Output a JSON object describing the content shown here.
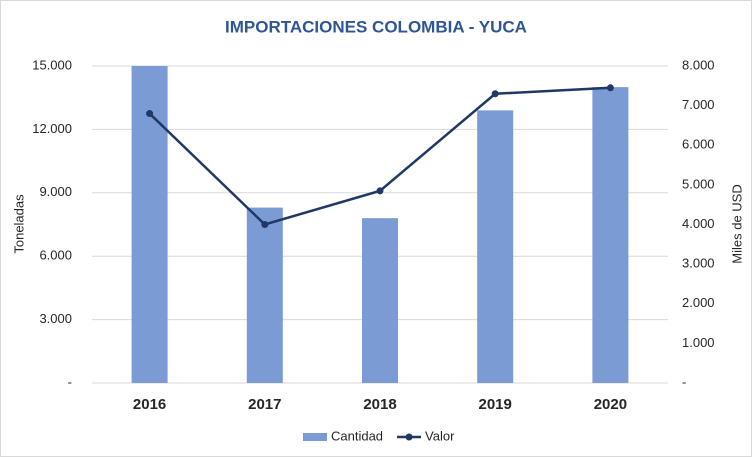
{
  "chart_data": {
    "type": "bar_line",
    "title": "IMPORTACIONES COLOMBIA - YUCA",
    "y_label": "Toneladas",
    "y2_label": "Miles de USD",
    "categories": [
      "2016",
      "2017",
      "2018",
      "2019",
      "2020"
    ],
    "series": [
      {
        "name": "Cantidad",
        "type": "bar",
        "color": "#7b9bd5",
        "values": [
          15000,
          8300,
          7800,
          12900,
          14000
        ]
      },
      {
        "name": "Valor",
        "type": "line",
        "axis": "y2",
        "color": "#1f3864",
        "values": [
          6800,
          4000,
          4850,
          7300,
          7450
        ]
      }
    ],
    "ylim": [
      0,
      15000
    ],
    "yticks": [
      {
        "value": 0,
        "label": "-"
      },
      {
        "value": 3000,
        "label": "3.000"
      },
      {
        "value": 6000,
        "label": "6.000"
      },
      {
        "value": 9000,
        "label": "9.000"
      },
      {
        "value": 12000,
        "label": "12.000"
      },
      {
        "value": 15000,
        "label": "15.000"
      }
    ],
    "y2lim": [
      0,
      8000
    ],
    "y2ticks": [
      {
        "value": 0,
        "label": "-"
      },
      {
        "value": 1000,
        "label": "1.000"
      },
      {
        "value": 2000,
        "label": "2.000"
      },
      {
        "value": 3000,
        "label": "3.000"
      },
      {
        "value": 4000,
        "label": "4.000"
      },
      {
        "value": 5000,
        "label": "5.000"
      },
      {
        "value": 6000,
        "label": "6.000"
      },
      {
        "value": 7000,
        "label": "7.000"
      },
      {
        "value": 8000,
        "label": "8.000"
      }
    ],
    "grid": true,
    "legend": "bottom"
  }
}
